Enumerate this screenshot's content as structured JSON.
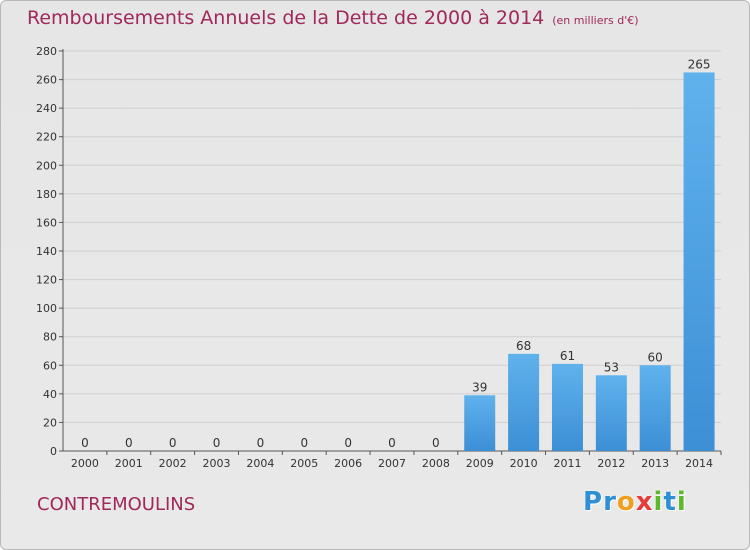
{
  "title": "Remboursements Annuels de la Dette de 2000 à 2014",
  "unit": "(en milliers d'€)",
  "town": "CONTREMOULINS",
  "logo": {
    "letters": [
      {
        "ch": "P",
        "color": "#2f8fd4"
      },
      {
        "ch": "r",
        "color": "#2f8fd4"
      },
      {
        "ch": "o",
        "color": "#f0a020"
      },
      {
        "ch": "x",
        "color": "#e83a3a"
      },
      {
        "ch": "i",
        "color": "#5cb82e"
      },
      {
        "ch": "t",
        "color": "#2f8fd4"
      },
      {
        "ch": "i",
        "color": "#5cb82e"
      }
    ]
  },
  "chart_data": {
    "type": "bar",
    "categories": [
      "2000",
      "2001",
      "2002",
      "2003",
      "2004",
      "2005",
      "2006",
      "2007",
      "2008",
      "2009",
      "2010",
      "2011",
      "2012",
      "2013",
      "2014"
    ],
    "values": [
      0,
      0,
      0,
      0,
      0,
      0,
      0,
      0,
      0,
      39,
      68,
      61,
      53,
      60,
      265
    ],
    "ylim": [
      0,
      280
    ],
    "yticks": [
      0,
      20,
      40,
      60,
      80,
      100,
      120,
      140,
      160,
      180,
      200,
      220,
      240,
      260,
      280
    ],
    "grid": true,
    "bar_color": "#3d8fd6",
    "bar_color_light": "#5fb2ec"
  }
}
